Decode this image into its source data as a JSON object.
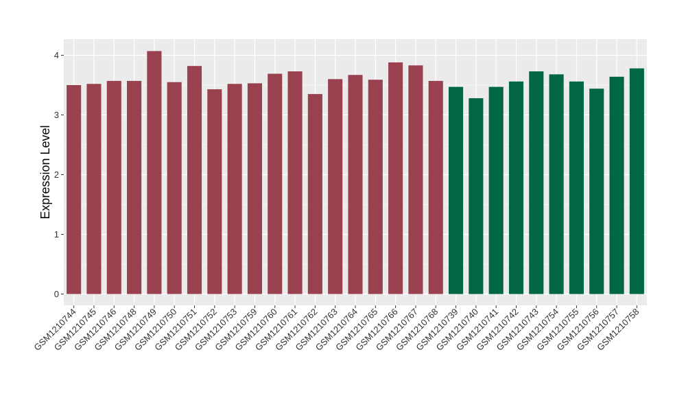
{
  "chart_data": {
    "type": "bar",
    "title": "",
    "xlabel": "",
    "ylabel": "Expression Level",
    "ylim": [
      0,
      4.2
    ],
    "yticks": [
      0,
      1,
      2,
      3,
      4
    ],
    "grid": true,
    "background": "#EBEBEB",
    "gridline_color": "#FFFFFF",
    "categories": [
      "GSM1210744",
      "GSM1210745",
      "GSM1210746",
      "GSM1210748",
      "GSM1210749",
      "GSM1210750",
      "GSM1210751",
      "GSM1210752",
      "GSM1210753",
      "GSM1210759",
      "GSM1210760",
      "GSM1210761",
      "GSM1210762",
      "GSM1210763",
      "GSM1210764",
      "GSM1210765",
      "GSM1210766",
      "GSM1210767",
      "GSM1210768",
      "GSM1210739",
      "GSM1210740",
      "GSM1210741",
      "GSM1210742",
      "GSM1210743",
      "GSM1210754",
      "GSM1210755",
      "GSM1210756",
      "GSM1210757",
      "GSM1210758"
    ],
    "values": [
      3.5,
      3.52,
      3.57,
      3.57,
      4.07,
      3.55,
      3.82,
      3.43,
      3.52,
      3.53,
      3.69,
      3.73,
      3.35,
      3.6,
      3.67,
      3.59,
      3.88,
      3.83,
      3.57,
      3.47,
      3.28,
      3.47,
      3.56,
      3.73,
      3.68,
      3.56,
      3.44,
      3.64,
      3.78
    ],
    "bar_groups": [
      {
        "start": 0,
        "end": 18,
        "color": "#9A4150"
      },
      {
        "start": 19,
        "end": 28,
        "color": "#006644"
      }
    ]
  }
}
